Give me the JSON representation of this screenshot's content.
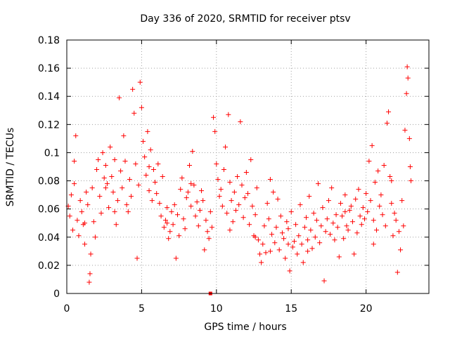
{
  "colors": {
    "series": "#ff0000",
    "grid": "#a0a0a0",
    "frame": "#000000"
  },
  "chart_data": {
    "type": "scatter",
    "title": "Day 336 of 2020, SRMTID for receiver ptsv",
    "xlabel": "GPS time / hours",
    "ylabel": "SRMTID / TECUs",
    "xlim": [
      0,
      24.2
    ],
    "ylim": [
      0,
      0.18
    ],
    "xticks": [
      0,
      5,
      10,
      15,
      20
    ],
    "xtick_labels": [
      "0",
      "5",
      "10",
      "15",
      "20"
    ],
    "yticks": [
      0,
      0.02,
      0.04,
      0.06,
      0.08,
      0.1,
      0.12,
      0.14,
      0.16,
      0.18
    ],
    "ytick_labels": [
      "0",
      "0.02",
      "0.04",
      "0.06",
      "0.08",
      "0.1",
      "0.12",
      "0.14",
      "0.16",
      "0.18"
    ],
    "grid": true,
    "marker": "+",
    "series": [
      {
        "name": "SRMTID",
        "points": [
          [
            0.1,
            0.062
          ],
          [
            0.2,
            0.055
          ],
          [
            0.3,
            0.07
          ],
          [
            0.4,
            0.045
          ],
          [
            0.5,
            0.094
          ],
          [
            0.6,
            0.112
          ],
          [
            0.7,
            0.052
          ],
          [
            0.8,
            0.041
          ],
          [
            0.9,
            0.066
          ],
          [
            1.0,
            0.058
          ],
          [
            1.1,
            0.049
          ],
          [
            1.2,
            0.035
          ],
          [
            1.3,
            0.072
          ],
          [
            1.4,
            0.063
          ],
          [
            1.5,
            0.008
          ],
          [
            1.55,
            0.014
          ],
          [
            1.6,
            0.028
          ],
          [
            1.7,
            0.075
          ],
          [
            1.8,
            0.051
          ],
          [
            1.9,
            0.04
          ],
          [
            2.0,
            0.088
          ],
          [
            2.1,
            0.095
          ],
          [
            2.2,
            0.069
          ],
          [
            2.3,
            0.057
          ],
          [
            2.4,
            0.1
          ],
          [
            2.5,
            0.082
          ],
          [
            2.6,
            0.091
          ],
          [
            2.7,
            0.078
          ],
          [
            2.8,
            0.061
          ],
          [
            2.9,
            0.104
          ],
          [
            3.0,
            0.083
          ],
          [
            3.1,
            0.072
          ],
          [
            3.2,
            0.095
          ],
          [
            3.3,
            0.049
          ],
          [
            3.4,
            0.066
          ],
          [
            3.5,
            0.139
          ],
          [
            3.6,
            0.087
          ],
          [
            3.7,
            0.075
          ],
          [
            3.8,
            0.112
          ],
          [
            3.9,
            0.094
          ],
          [
            4.0,
            0.063
          ],
          [
            4.1,
            0.058
          ],
          [
            4.2,
            0.081
          ],
          [
            4.3,
            0.069
          ],
          [
            4.4,
            0.145
          ],
          [
            4.5,
            0.128
          ],
          [
            4.6,
            0.092
          ],
          [
            4.7,
            0.025
          ],
          [
            4.8,
            0.077
          ],
          [
            4.9,
            0.15
          ],
          [
            5.0,
            0.132
          ],
          [
            5.1,
            0.108
          ],
          [
            5.2,
            0.097
          ],
          [
            5.3,
            0.084
          ],
          [
            5.4,
            0.115
          ],
          [
            5.5,
            0.073
          ],
          [
            5.6,
            0.102
          ],
          [
            5.7,
            0.066
          ],
          [
            5.8,
            0.088
          ],
          [
            5.9,
            0.079
          ],
          [
            6.0,
            0.071
          ],
          [
            6.1,
            0.092
          ],
          [
            6.2,
            0.064
          ],
          [
            6.3,
            0.055
          ],
          [
            6.4,
            0.083
          ],
          [
            6.5,
            0.047
          ],
          [
            6.6,
            0.052
          ],
          [
            6.7,
            0.061
          ],
          [
            6.8,
            0.039
          ],
          [
            6.9,
            0.044
          ],
          [
            7.0,
            0.058
          ],
          [
            7.1,
            0.049
          ],
          [
            7.2,
            0.063
          ],
          [
            7.3,
            0.025
          ],
          [
            7.4,
            0.056
          ],
          [
            7.5,
            0.041
          ],
          [
            7.6,
            0.074
          ],
          [
            7.7,
            0.082
          ],
          [
            7.8,
            0.053
          ],
          [
            7.9,
            0.046
          ],
          [
            8.0,
            0.068
          ],
          [
            8.1,
            0.072
          ],
          [
            8.2,
            0.091
          ],
          [
            8.3,
            0.062
          ],
          [
            8.4,
            0.101
          ],
          [
            8.5,
            0.077
          ],
          [
            8.6,
            0.055
          ],
          [
            8.7,
            0.065
          ],
          [
            8.8,
            0.048
          ],
          [
            8.9,
            0.059
          ],
          [
            9.0,
            0.073
          ],
          [
            9.1,
            0.066
          ],
          [
            9.2,
            0.031
          ],
          [
            9.3,
            0.052
          ],
          [
            9.4,
            0.044
          ],
          [
            9.5,
            0.039
          ],
          [
            9.6,
            0.058
          ],
          [
            9.7,
            0.047
          ],
          [
            9.8,
            0.125
          ],
          [
            9.9,
            0.115
          ],
          [
            10.0,
            0.092
          ],
          [
            10.1,
            0.081
          ],
          [
            10.2,
            0.069
          ],
          [
            10.3,
            0.074
          ],
          [
            10.4,
            0.062
          ],
          [
            10.5,
            0.088
          ],
          [
            10.6,
            0.104
          ],
          [
            10.7,
            0.057
          ],
          [
            10.8,
            0.127
          ],
          [
            10.9,
            0.079
          ],
          [
            11.0,
            0.066
          ],
          [
            11.1,
            0.051
          ],
          [
            11.2,
            0.072
          ],
          [
            11.3,
            0.059
          ],
          [
            11.4,
            0.083
          ],
          [
            11.5,
            0.063
          ],
          [
            11.6,
            0.122
          ],
          [
            11.7,
            0.077
          ],
          [
            11.8,
            0.054
          ],
          [
            11.9,
            0.068
          ],
          [
            12.0,
            0.086
          ],
          [
            12.1,
            0.071
          ],
          [
            12.2,
            0.049
          ],
          [
            12.3,
            0.095
          ],
          [
            12.4,
            0.062
          ],
          [
            12.5,
            0.041
          ],
          [
            12.6,
            0.056
          ],
          [
            12.7,
            0.075
          ],
          [
            12.8,
            0.038
          ],
          [
            12.9,
            0.028
          ],
          [
            13.0,
            0.022
          ],
          [
            13.1,
            0.035
          ],
          [
            13.2,
            0.048
          ],
          [
            13.3,
            0.029
          ],
          [
            13.4,
            0.064
          ],
          [
            13.5,
            0.053
          ],
          [
            13.6,
            0.081
          ],
          [
            13.7,
            0.042
          ],
          [
            13.8,
            0.072
          ],
          [
            13.9,
            0.036
          ],
          [
            14.0,
            0.047
          ],
          [
            14.1,
            0.067
          ],
          [
            14.2,
            0.031
          ],
          [
            14.3,
            0.055
          ],
          [
            14.4,
            0.043
          ],
          [
            14.5,
            0.039
          ],
          [
            14.6,
            0.025
          ],
          [
            14.7,
            0.051
          ],
          [
            14.8,
            0.046
          ],
          [
            14.9,
            0.016
          ],
          [
            15.0,
            0.058
          ],
          [
            15.1,
            0.033
          ],
          [
            15.2,
            0.037
          ],
          [
            15.3,
            0.049
          ],
          [
            15.4,
            0.028
          ],
          [
            15.5,
            0.041
          ],
          [
            15.6,
            0.063
          ],
          [
            15.7,
            0.035
          ],
          [
            15.8,
            0.022
          ],
          [
            15.9,
            0.047
          ],
          [
            16.0,
            0.054
          ],
          [
            16.1,
            0.038
          ],
          [
            16.2,
            0.069
          ],
          [
            16.3,
            0.045
          ],
          [
            16.4,
            0.032
          ],
          [
            16.5,
            0.057
          ],
          [
            16.6,
            0.04
          ],
          [
            16.7,
            0.052
          ],
          [
            16.8,
            0.078
          ],
          [
            16.9,
            0.036
          ],
          [
            17.0,
            0.048
          ],
          [
            17.1,
            0.061
          ],
          [
            17.2,
            0.009
          ],
          [
            17.3,
            0.044
          ],
          [
            17.4,
            0.053
          ],
          [
            17.5,
            0.066
          ],
          [
            17.6,
            0.042
          ],
          [
            17.7,
            0.075
          ],
          [
            17.8,
            0.05
          ],
          [
            17.9,
            0.038
          ],
          [
            18.0,
            0.056
          ],
          [
            18.1,
            0.047
          ],
          [
            18.2,
            0.026
          ],
          [
            18.3,
            0.064
          ],
          [
            18.4,
            0.055
          ],
          [
            18.5,
            0.039
          ],
          [
            18.6,
            0.07
          ],
          [
            18.7,
            0.048
          ],
          [
            18.8,
            0.045
          ],
          [
            18.9,
            0.059
          ],
          [
            19.0,
            0.062
          ],
          [
            19.1,
            0.051
          ],
          [
            19.2,
            0.028
          ],
          [
            19.3,
            0.067
          ],
          [
            19.4,
            0.043
          ],
          [
            19.5,
            0.074
          ],
          [
            19.6,
            0.055
          ],
          [
            19.7,
            0.049
          ],
          [
            19.8,
            0.061
          ],
          [
            19.9,
            0.053
          ],
          [
            20.0,
            0.071
          ],
          [
            20.1,
            0.058
          ],
          [
            20.2,
            0.094
          ],
          [
            20.3,
            0.066
          ],
          [
            20.4,
            0.105
          ],
          [
            20.5,
            0.052
          ],
          [
            20.6,
            0.079
          ],
          [
            20.7,
            0.045
          ],
          [
            20.8,
            0.087
          ],
          [
            20.9,
            0.062
          ],
          [
            21.0,
            0.07
          ],
          [
            21.1,
            0.056
          ],
          [
            21.2,
            0.091
          ],
          [
            21.3,
            0.048
          ],
          [
            21.4,
            0.121
          ],
          [
            21.5,
            0.129
          ],
          [
            21.6,
            0.083
          ],
          [
            21.7,
            0.064
          ],
          [
            21.8,
            0.041
          ],
          [
            21.9,
            0.057
          ],
          [
            22.0,
            0.052
          ],
          [
            22.1,
            0.015
          ],
          [
            22.2,
            0.044
          ],
          [
            22.3,
            0.031
          ],
          [
            22.4,
            0.066
          ],
          [
            22.5,
            0.048
          ],
          [
            22.6,
            0.116
          ],
          [
            22.7,
            0.142
          ],
          [
            22.75,
            0.161
          ],
          [
            22.8,
            0.153
          ],
          [
            22.9,
            0.11
          ],
          [
            23.0,
            0.08
          ],
          [
            22.95,
            0.09
          ],
          [
            0.5,
            0.078
          ],
          [
            1.2,
            0.05
          ],
          [
            2.6,
            0.075
          ],
          [
            3.2,
            0.058
          ],
          [
            5.5,
            0.09
          ],
          [
            8.3,
            0.078
          ],
          [
            10.9,
            0.045
          ],
          [
            13.6,
            0.03
          ],
          [
            14.8,
            0.035
          ],
          [
            16.1,
            0.03
          ],
          [
            18.6,
            0.058
          ],
          [
            20.5,
            0.035
          ],
          [
            21.7,
            0.08
          ],
          [
            12.6,
            0.04
          ],
          [
            6.7,
            0.05
          ]
        ]
      }
    ],
    "special_points": [
      {
        "x": 9.6,
        "y": 0.0,
        "marker": "square"
      }
    ]
  }
}
